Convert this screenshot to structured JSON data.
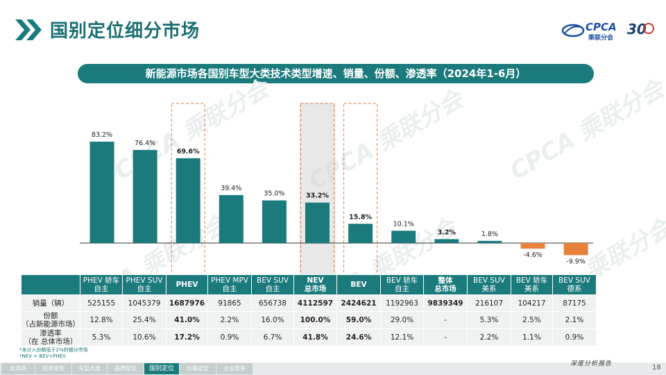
{
  "page": {
    "title": "国别定位细分市场",
    "banner": "新能源市场各国别车型大类技术类型增速、销量、份额、渗透率（2024年1-6月）",
    "page_number": "18",
    "slogan": "深度分析报告",
    "logo_text": "CPCA",
    "logo_sub": "乘联分会",
    "logo_30": "30",
    "watermark": "CPCA 乘联分会"
  },
  "nav": {
    "items": [
      "总市场",
      "技术突变",
      "车型大类",
      "品牌定位",
      "国别定位",
      "价格定位",
      "企业竞争"
    ],
    "active_index": 4
  },
  "colors": {
    "teal": "#1b7a7c",
    "orange": "#e8823a",
    "highlight_box": "#e07b3a"
  },
  "chart_data": {
    "type": "bar",
    "categories": [
      "PHEV 轿车 自主",
      "PHEV SUV 自主",
      "PHEV",
      "PHEV MPV 自主",
      "BEV SUV 自主",
      "NEV 总市场",
      "BEV",
      "BEV 轿车 自主",
      "整体 总市场",
      "BEV SUV 美系",
      "BEV 轿车 美系",
      "BEV SUV 德系"
    ],
    "values": [
      83.2,
      76.4,
      69.6,
      39.4,
      35.0,
      33.2,
      15.8,
      10.1,
      3.2,
      1.8,
      -4.6,
      -9.9
    ],
    "labels": [
      "83.2%",
      "76.4%",
      "69.6%",
      "39.4%",
      "35.0%",
      "33.2%",
      "15.8%",
      "10.1%",
      "3.2%",
      "1.8%",
      "-4.6%",
      "-9.9%"
    ],
    "bold_indices": [
      2,
      5,
      6,
      8
    ],
    "highlight_indices": [
      2,
      5,
      6
    ],
    "shaded_indices": [
      5
    ],
    "positive_color": "#1b7a7c",
    "negative_color": "#e8823a",
    "ylim": [
      -12,
      90
    ],
    "grid": false,
    "legend": "none",
    "title": "",
    "xlabel": "",
    "ylabel": ""
  },
  "table": {
    "headers": [
      [
        "PHEV 轿车",
        "自主"
      ],
      [
        "PHEV  SUV",
        "自主"
      ],
      [
        "PHEV"
      ],
      [
        "PHEV  MPV",
        "自主"
      ],
      [
        "BEV SUV",
        "自主"
      ],
      [
        "NEV",
        "总市场"
      ],
      [
        "BEV"
      ],
      [
        "BEV 轿车",
        "自主"
      ],
      [
        "整体",
        "总市场"
      ],
      [
        "BEV SUV",
        "美系"
      ],
      [
        "BEV 轿车",
        "美系"
      ],
      [
        "BEV SUV",
        "德系"
      ]
    ],
    "rows": [
      {
        "label": [
          "销量（辆）"
        ],
        "values": [
          "525155",
          "1045379",
          "1687976",
          "91865",
          "656738",
          "4112597",
          "2424621",
          "1192963",
          "9839349",
          "216107",
          "104217",
          "87175"
        ]
      },
      {
        "label": [
          "份额",
          "（占新能源市场）"
        ],
        "values": [
          "12.8%",
          "25.4%",
          "41.0%",
          "2.2%",
          "16.0%",
          "100.0%",
          "59.0%",
          "29.0%",
          "-",
          "5.3%",
          "2.5%",
          "2.1%"
        ]
      },
      {
        "label": [
          "渗透率",
          "（在 总体市场）"
        ],
        "values": [
          "5.3%",
          "10.6%",
          "17.2%",
          "0.9%",
          "6.7%",
          "41.8%",
          "24.6%",
          "12.1%",
          "-",
          "2.2%",
          "1.1%",
          "0.9%"
        ]
      }
    ],
    "bold_columns": [
      2,
      5,
      6
    ],
    "bold_sales_columns": [
      8
    ]
  },
  "notes": [
    "*未计入份额低于2%的细分市场",
    "*NEV = BEV+PHEV"
  ]
}
